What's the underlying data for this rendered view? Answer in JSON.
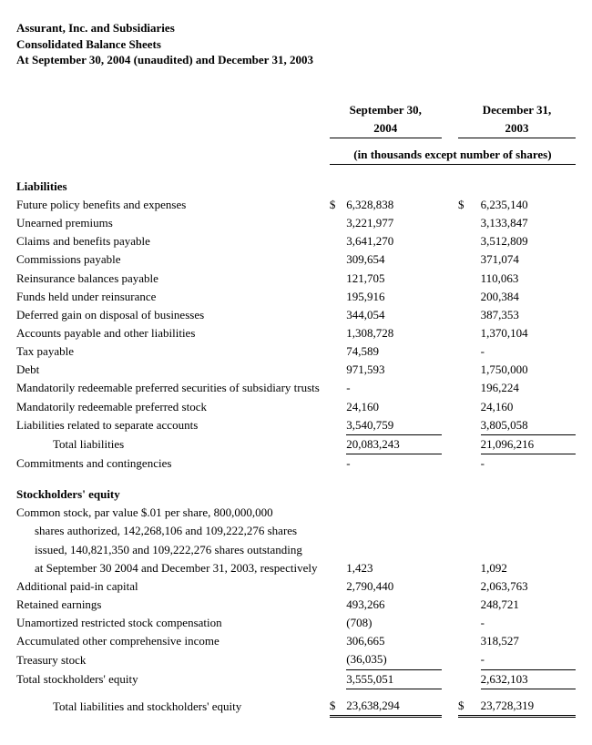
{
  "header": {
    "line1": "Assurant, Inc. and Subsidiaries",
    "line2": "Consolidated Balance Sheets",
    "line3": "At September 30, 2004 (unaudited) and December 31, 2003"
  },
  "columns": {
    "col1_top": "September 30,",
    "col1_bot": "2004",
    "col2_top": "December 31,",
    "col2_bot": "2003",
    "units": "(in thousands except number of shares)"
  },
  "liabilities": {
    "title": "Liabilities",
    "rows": [
      {
        "label": "Future policy benefits and expenses",
        "c1": "$",
        "v1": "6,328,838",
        "c2": "$",
        "v2": "6,235,140"
      },
      {
        "label": "Unearned premiums",
        "v1": "3,221,977",
        "v2": "3,133,847"
      },
      {
        "label": "Claims and benefits payable",
        "v1": "3,641,270",
        "v2": "3,512,809"
      },
      {
        "label": "Commissions payable",
        "v1": "309,654",
        "v2": "371,074"
      },
      {
        "label": "Reinsurance balances payable",
        "v1": "121,705",
        "v2": "110,063"
      },
      {
        "label": "Funds held under reinsurance",
        "v1": "195,916",
        "v2": "200,384"
      },
      {
        "label": "Deferred gain on disposal of businesses",
        "v1": "344,054",
        "v2": "387,353"
      },
      {
        "label": "Accounts payable and other liabilities",
        "v1": "1,308,728",
        "v2": "1,370,104"
      },
      {
        "label": "Tax payable",
        "v1": "74,589",
        "v2": "-"
      },
      {
        "label": "Debt",
        "v1": "971,593",
        "v2": "1,750,000"
      },
      {
        "label": "Mandatorily redeemable preferred securities of subsidiary trusts",
        "v1": "-",
        "v2": "196,224"
      },
      {
        "label": "Mandatorily redeemable preferred stock",
        "v1": "24,160",
        "v2": "24,160"
      },
      {
        "label": "Liabilities related to separate accounts",
        "v1": "3,540,759",
        "v2": "3,805,058"
      }
    ],
    "total": {
      "label": "Total liabilities",
      "v1": "20,083,243",
      "v2": "21,096,216"
    },
    "commitments": {
      "label": "Commitments and contingencies",
      "v1": "-",
      "v2": "-"
    }
  },
  "equity": {
    "title": "Stockholders' equity",
    "common_stock": {
      "l1": "Common stock, par value $.01 per share, 800,000,000",
      "l2": "shares authorized, 142,268,106 and 109,222,276 shares",
      "l3": "issued, 140,821,350 and 109,222,276 shares outstanding",
      "l4": "at September 30 2004 and December 31, 2003, respectively",
      "v1": "1,423",
      "v2": "1,092"
    },
    "rows": [
      {
        "label": "Additional paid-in capital",
        "v1": "2,790,440",
        "v2": "2,063,763"
      },
      {
        "label": "Retained earnings",
        "v1": "493,266",
        "v2": "248,721"
      },
      {
        "label": "Unamortized restricted stock compensation",
        "v1": "(708)",
        "v2": "-"
      },
      {
        "label": "Accumulated other comprehensive income",
        "v1": "306,665",
        "v2": "318,527"
      },
      {
        "label": "Treasury stock",
        "v1": "(36,035)",
        "v2": "-"
      }
    ],
    "total_equity": {
      "label": "Total stockholders' equity",
      "v1": "3,555,051",
      "v2": "2,632,103"
    },
    "grand_total": {
      "label": "Total liabilities and stockholders' equity",
      "c1": "$",
      "v1": "23,638,294",
      "c2": "$",
      "v2": "23,728,319"
    }
  }
}
